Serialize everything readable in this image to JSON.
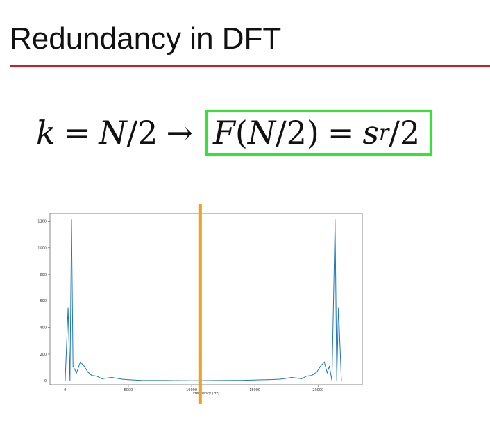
{
  "slide": {
    "title": "Redundancy in DFT",
    "title_rule_color": "#cc1f1f",
    "highlight_color": "#2ee82e",
    "marker_color": "#f0a020"
  },
  "equation": {
    "k": "k",
    "equals": "=",
    "N": "N",
    "slash": "/",
    "two": "2",
    "arrow": "→",
    "F": "F",
    "lparen": "(",
    "rparen": ")",
    "s": "s",
    "r": "r"
  },
  "chart_data": {
    "type": "line",
    "xlabel": "Frequency (Hz)",
    "ylabel": "",
    "title": "",
    "xlim": [
      -1200,
      23500
    ],
    "ylim": [
      -30,
      1260
    ],
    "xticks": [
      0,
      5000,
      10000,
      15000,
      20000
    ],
    "yticks": [
      0,
      200,
      400,
      600,
      800,
      1000,
      1200
    ],
    "grid": false,
    "line_color": "#1f77b4",
    "marker_line_x": 10700,
    "series": [
      {
        "x": [
          0,
          230,
          380,
          500,
          620,
          900,
          1200,
          1500,
          1800,
          2100,
          2500,
          2900,
          3300,
          3700,
          4100,
          4500,
          5000,
          6000,
          8000,
          10000,
          12000,
          14000,
          16000,
          17000,
          17500,
          17900,
          18300,
          18700,
          19100,
          19500,
          19900,
          20200,
          20500,
          20720,
          20900,
          21100,
          21350,
          21480,
          21620,
          21850
        ],
        "y": [
          0,
          550,
          0,
          1210,
          110,
          60,
          140,
          110,
          65,
          40,
          35,
          15,
          20,
          25,
          18,
          12,
          8,
          3,
          2,
          0,
          2,
          3,
          8,
          12,
          18,
          25,
          20,
          15,
          35,
          40,
          65,
          110,
          140,
          60,
          110,
          0,
          1210,
          0,
          550,
          0
        ]
      }
    ]
  }
}
